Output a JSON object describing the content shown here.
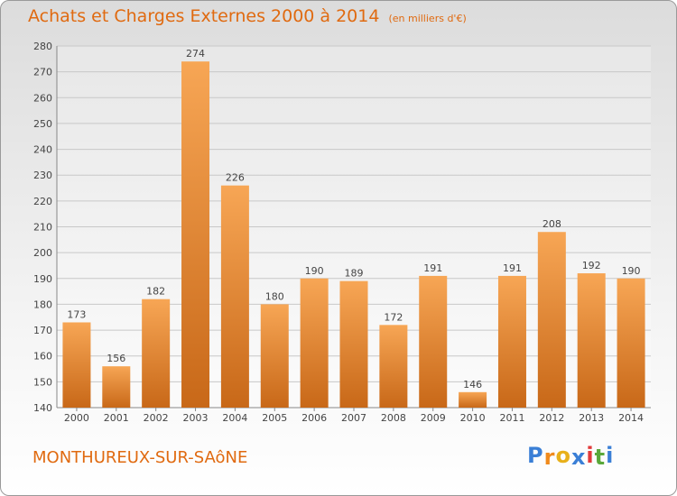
{
  "title": "Achats et Charges Externes 2000 à 2014",
  "subtitle": "(en milliers d'€)",
  "location": "MONTHUREUX-SUR-SAôNE",
  "logo": {
    "letters": [
      "P",
      "r",
      "o",
      "x",
      "i",
      "t",
      "i"
    ],
    "colors": [
      "#3a7fd6",
      "#f08a1c",
      "#e8b01a",
      "#3a7fd6",
      "#e23a3a",
      "#5aa83a",
      "#3a7fd6"
    ]
  },
  "colors": {
    "bar_light": "#f7a655",
    "bar_dark": "#c86818",
    "accent": "#e06a10"
  },
  "chart_data": {
    "type": "bar",
    "categories": [
      "2000",
      "2001",
      "2002",
      "2003",
      "2004",
      "2005",
      "2006",
      "2007",
      "2008",
      "2009",
      "2010",
      "2011",
      "2012",
      "2013",
      "2014"
    ],
    "values": [
      173,
      156,
      182,
      274,
      226,
      180,
      190,
      189,
      172,
      191,
      146,
      191,
      208,
      192,
      190
    ],
    "ylim": [
      140,
      280
    ],
    "yticks": [
      140,
      150,
      160,
      170,
      180,
      190,
      200,
      210,
      220,
      230,
      240,
      250,
      260,
      270,
      280
    ],
    "grid": true,
    "title": "Achats et Charges Externes 2000 à 2014",
    "xlabel": "",
    "ylabel": ""
  }
}
